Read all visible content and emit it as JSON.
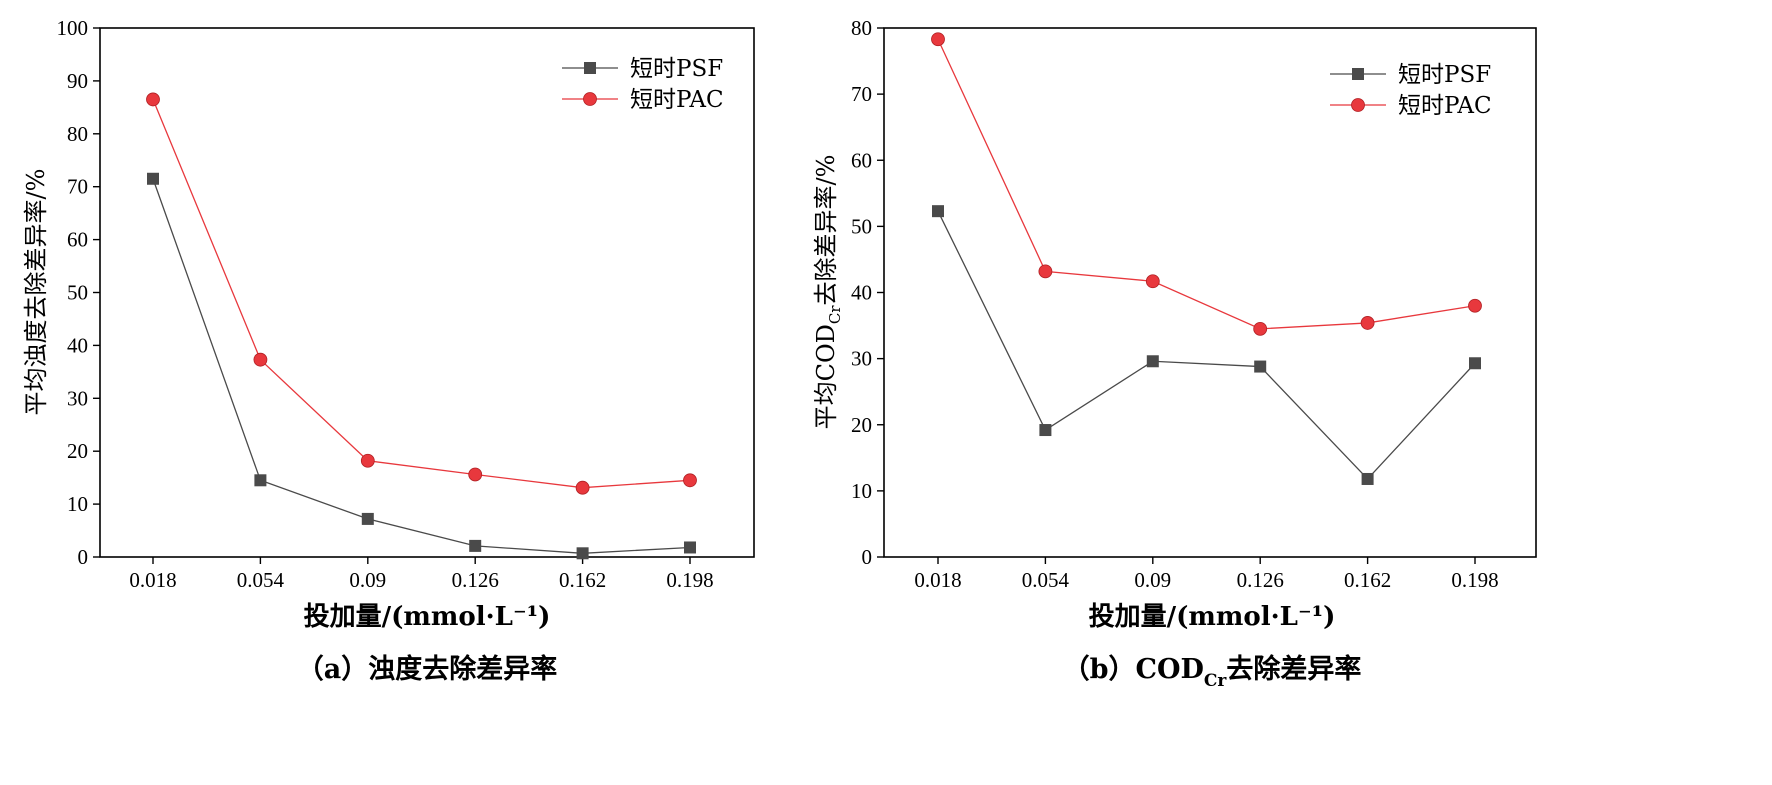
{
  "chart_data": [
    {
      "type": "line",
      "caption": "（a）浊度去除差异率",
      "xlabel": "投加量/(mmol·L⁻¹)",
      "ylabel": "平均浊度去除差异率/%",
      "categories": [
        "0.018",
        "0.054",
        "0.09",
        "0.126",
        "0.162",
        "0.198"
      ],
      "ylim": [
        0,
        100
      ],
      "yticks": [
        0,
        10,
        20,
        30,
        40,
        50,
        60,
        70,
        80,
        90,
        100
      ],
      "legend_position": "top-right",
      "series": [
        {
          "name": "短时PSF",
          "marker": "square",
          "color": "#4a4a4a",
          "values": [
            71.5,
            14.5,
            7.2,
            2.1,
            0.7,
            1.8
          ]
        },
        {
          "name": "短时PAC",
          "marker": "circle",
          "color": "#e8383d",
          "values": [
            86.5,
            37.3,
            18.2,
            15.6,
            13.1,
            14.5
          ]
        }
      ]
    },
    {
      "type": "line",
      "caption_prefix": "（b）COD",
      "caption_sub": "Cr",
      "caption_suffix": "去除差异率",
      "xlabel": "投加量/(mmol·L⁻¹)",
      "ylabel_prefix": "平均COD",
      "ylabel_sub": "Cr",
      "ylabel_suffix": "去除差异率/%",
      "categories": [
        "0.018",
        "0.054",
        "0.09",
        "0.126",
        "0.162",
        "0.198"
      ],
      "ylim": [
        0,
        80
      ],
      "yticks": [
        0,
        10,
        20,
        30,
        40,
        50,
        60,
        70,
        80
      ],
      "legend_position": "top-right",
      "series": [
        {
          "name": "短时PSF",
          "marker": "square",
          "color": "#4a4a4a",
          "values": [
            52.3,
            19.2,
            29.6,
            28.8,
            11.8,
            29.3
          ]
        },
        {
          "name": "短时PAC",
          "marker": "circle",
          "color": "#e8383d",
          "values": [
            78.3,
            43.2,
            41.7,
            34.5,
            35.4,
            38.0
          ]
        }
      ]
    }
  ]
}
